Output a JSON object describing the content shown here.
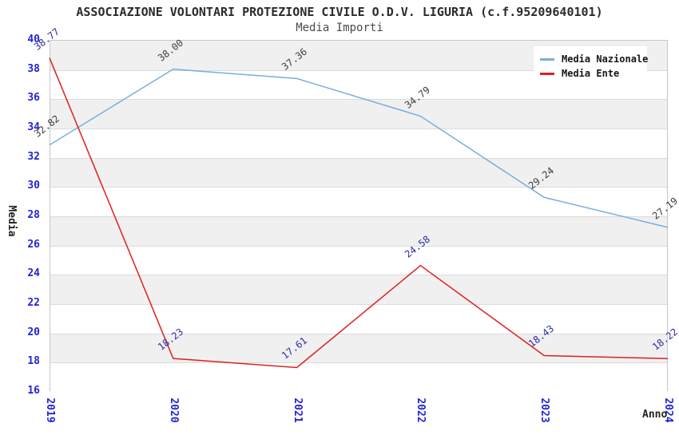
{
  "header": {
    "title": "ASSOCIAZIONE VOLONTARI PROTEZIONE CIVILE O.D.V. LIGURIA (c.f.95209640101)",
    "subtitle": "Media Importi"
  },
  "legend": [
    {
      "name": "Media Nazionale",
      "color": "#79ade0"
    },
    {
      "name": "Media Ente",
      "color": "#e01f1f"
    }
  ],
  "chart_data": {
    "type": "line",
    "title": "ASSOCIAZIONE VOLONTARI PROTEZIONE CIVILE O.D.V. LIGURIA (c.f.95209640101)",
    "subtitle": "Media Importi",
    "xlabel": "Anno",
    "ylabel": "Media",
    "x": [
      "2019",
      "2020",
      "2021",
      "2022",
      "2023",
      "2024"
    ],
    "series": [
      {
        "name": "Media Nazionale",
        "color": "#79ade0",
        "label_color": "#3d3d3d",
        "values": [
          32.82,
          38.0,
          37.36,
          34.79,
          29.24,
          27.19
        ]
      },
      {
        "name": "Media Ente",
        "color": "#e01f1f",
        "label_color": "#2d2da8",
        "values": [
          38.77,
          18.23,
          17.61,
          24.58,
          18.43,
          18.22
        ]
      }
    ],
    "ylim": [
      16,
      40
    ],
    "ytick_step": 2,
    "y_ticks": [
      "40",
      "38",
      "36",
      "34",
      "32",
      "30",
      "28",
      "26",
      "24",
      "22",
      "20",
      "18",
      "16"
    ],
    "grid": true,
    "band_colors": [
      "#f0f0f0",
      "#ffffff"
    ],
    "legend_position": "top-right",
    "tick_label_color": "#2323d7"
  }
}
